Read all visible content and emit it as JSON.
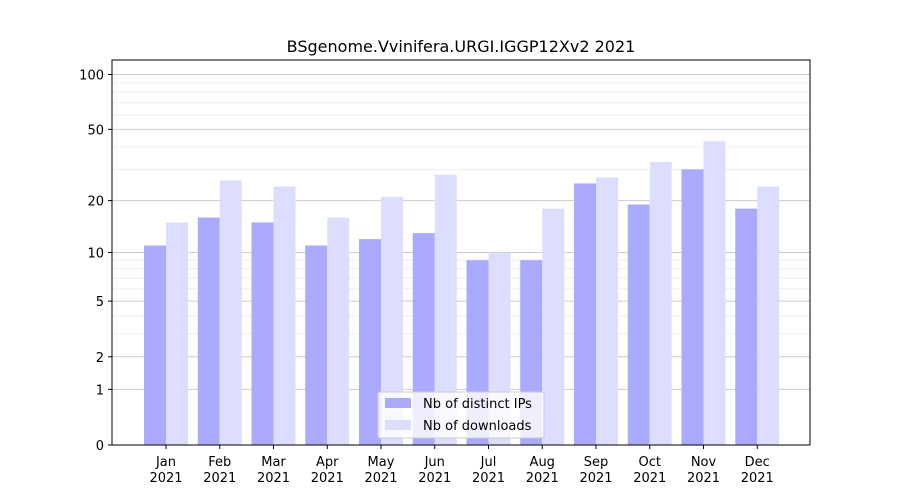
{
  "chart_data": {
    "type": "bar",
    "title": "BSgenome.Vvinifera.URGI.IGGP12Xv2 2021",
    "categories": [
      "Jan\n2021",
      "Feb\n2021",
      "Mar\n2021",
      "Apr\n2021",
      "May\n2021",
      "Jun\n2021",
      "Jul\n2021",
      "Aug\n2021",
      "Sep\n2021",
      "Oct\n2021",
      "Nov\n2021",
      "Dec\n2021"
    ],
    "series": [
      {
        "name": "Nb of distinct IPs",
        "color": "#aaaaff",
        "values": [
          11,
          16,
          15,
          11,
          12,
          13,
          9,
          9,
          25,
          19,
          30,
          18
        ]
      },
      {
        "name": "Nb of downloads",
        "color": "#ddddff",
        "values": [
          15,
          26,
          24,
          16,
          21,
          28,
          10,
          18,
          27,
          33,
          43,
          24
        ]
      }
    ],
    "yscale": "log1p",
    "yticks": [
      0,
      1,
      2,
      5,
      10,
      20,
      50,
      100
    ],
    "ylim": [
      0,
      120
    ],
    "legend": "lower-center",
    "grid": true
  }
}
